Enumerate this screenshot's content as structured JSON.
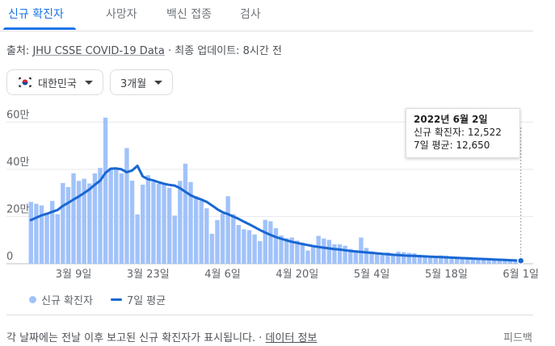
{
  "tabs": [
    {
      "label": "신규 확진자",
      "active": true
    },
    {
      "label": "사망자",
      "active": false
    },
    {
      "label": "백신 접종",
      "active": false
    },
    {
      "label": "검사",
      "active": false
    }
  ],
  "source": {
    "prefix": "출처: ",
    "link_label": "JHU CSSE COVID-19 Data",
    "update_text": " · 최종 업데이트: 8시간 전"
  },
  "filters": {
    "region": {
      "label": "대한민국",
      "flag_icon": "korea-flag-icon"
    },
    "period": {
      "label": "3개월"
    }
  },
  "tooltip": {
    "date": "2022년 6월 2일",
    "cases_line": "신규 확진자: 12,522",
    "avg_line": "7일 평균: 12,650"
  },
  "legend": {
    "cases_label": "신규 확진자",
    "avg_label": "7일 평균"
  },
  "footer": {
    "text": "각 날짜에는 전날 이후 보고된 신규 확진자가 표시됩니다. · ",
    "link_label": "데이터 정보",
    "feedback_label": "피드백"
  },
  "colors": {
    "bar": "#a1c2fa",
    "line": "#1967d2",
    "accent": "#1a73e8",
    "grid": "#e8eaed"
  },
  "chart_data": {
    "type": "bar",
    "y_tick_labels": [
      "0",
      "20만",
      "40만",
      "60만"
    ],
    "y_ticks": [
      0,
      200000,
      400000,
      600000
    ],
    "ylim": [
      0,
      680000
    ],
    "x_tick_labels": [
      "3월 9일",
      "3월 23일",
      "4월 6일",
      "4월 20일",
      "5월 4일",
      "5월 18일",
      "6월 1일"
    ],
    "x_tick_positions": [
      8,
      22,
      36,
      50,
      64,
      78,
      92
    ],
    "series": [
      {
        "name": "신규 확진자",
        "type": "bar",
        "values": [
          262000,
          254000,
          247000,
          216000,
          266000,
          210000,
          342000,
          325000,
          383000,
          351000,
          360000,
          340000,
          383000,
          406000,
          619000,
          406000,
          400000,
          383000,
          490000,
          352000,
          209000,
          335000,
          375000,
          347000,
          339000,
          340000,
          322000,
          204000,
          351000,
          424000,
          346000,
          286000,
          267000,
          235000,
          127000,
          185000,
          212000,
          286000,
          210000,
          164000,
          146000,
          142000,
          124000,
          96000,
          186000,
          180000,
          151000,
          120000,
          108000,
          111000,
          98000,
          90000,
          56000,
          74000,
          118000,
          107000,
          101000,
          82000,
          82000,
          76000,
          63000,
          52000,
          111000,
          67000,
          52000,
          42000,
          37000,
          48000,
          43000,
          51000,
          49000,
          46000,
          44000,
          38000,
          35000,
          32000,
          28000,
          35000,
          34000,
          29000,
          30000,
          28000,
          26000,
          25000,
          24000,
          23000,
          19000,
          16000,
          21000,
          17000,
          15000,
          13000,
          12522
        ]
      },
      {
        "name": "7일 평균",
        "type": "line",
        "values": [
          185000,
          195000,
          205000,
          212000,
          220000,
          228000,
          245000,
          258000,
          272000,
          285000,
          300000,
          315000,
          335000,
          352000,
          385000,
          403000,
          404000,
          400000,
          388000,
          395000,
          415000,
          370000,
          358000,
          353000,
          345000,
          339000,
          334000,
          331000,
          320000,
          305000,
          290000,
          280000,
          272000,
          262000,
          247000,
          231000,
          218000,
          210000,
          200000,
          190000,
          178000,
          167000,
          155000,
          143000,
          132000,
          122000,
          113000,
          106000,
          99000,
          93000,
          88000,
          83000,
          79000,
          75000,
          71000,
          68000,
          65000,
          62000,
          60000,
          57000,
          54000,
          52000,
          50000,
          48000,
          46000,
          44000,
          42000,
          40000,
          38000,
          37000,
          35000,
          34000,
          33000,
          32000,
          31000,
          30000,
          29000,
          28000,
          27000,
          26000,
          25000,
          24000,
          23000,
          22000,
          21000,
          20000,
          19000,
          18000,
          17000,
          16000,
          15000,
          14000,
          12650
        ]
      }
    ]
  }
}
